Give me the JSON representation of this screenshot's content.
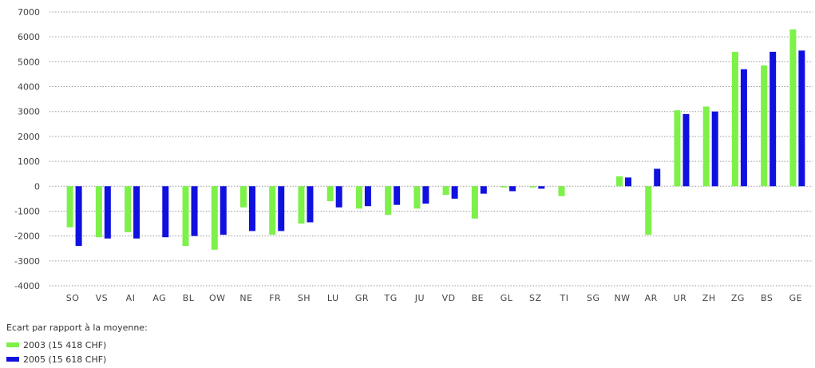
{
  "chart_data": {
    "type": "bar",
    "categories": [
      "SO",
      "VS",
      "AI",
      "AG",
      "BL",
      "OW",
      "NE",
      "FR",
      "SH",
      "LU",
      "GR",
      "TG",
      "JU",
      "VD",
      "BE",
      "GL",
      "SZ",
      "TI",
      "SG",
      "NW",
      "AR",
      "UR",
      "ZH",
      "ZG",
      "BS",
      "GE"
    ],
    "series": [
      {
        "name": "2003 (15 418 CHF)",
        "color": "#7ef04a",
        "values": [
          -1650,
          -2050,
          -1850,
          0,
          -2400,
          -2550,
          -850,
          -1950,
          -1500,
          -600,
          -900,
          -1150,
          -900,
          -350,
          -1300,
          -50,
          -50,
          -400,
          0,
          400,
          -1950,
          3050,
          3200,
          5400,
          4850,
          6300
        ]
      },
      {
        "name": "2005 (15 618 CHF)",
        "color": "#1010e0",
        "values": [
          -2400,
          -2100,
          -2100,
          -2050,
          -2000,
          -1950,
          -1800,
          -1800,
          -1450,
          -850,
          -800,
          -750,
          -700,
          -500,
          -300,
          -200,
          -100,
          0,
          0,
          350,
          700,
          2900,
          3000,
          4700,
          5400,
          5450
        ]
      }
    ],
    "ylim": [
      -4000,
      7000
    ],
    "yticks": [
      "7000",
      "6000",
      "5000",
      "4000",
      "3000",
      "2000",
      "1000",
      "0",
      "-1000",
      "-2000",
      "-3000",
      "-4000"
    ],
    "grid": true,
    "legend_title": "Ecart par rapport à la moyenne:",
    "legend_position": "bottom-left"
  }
}
